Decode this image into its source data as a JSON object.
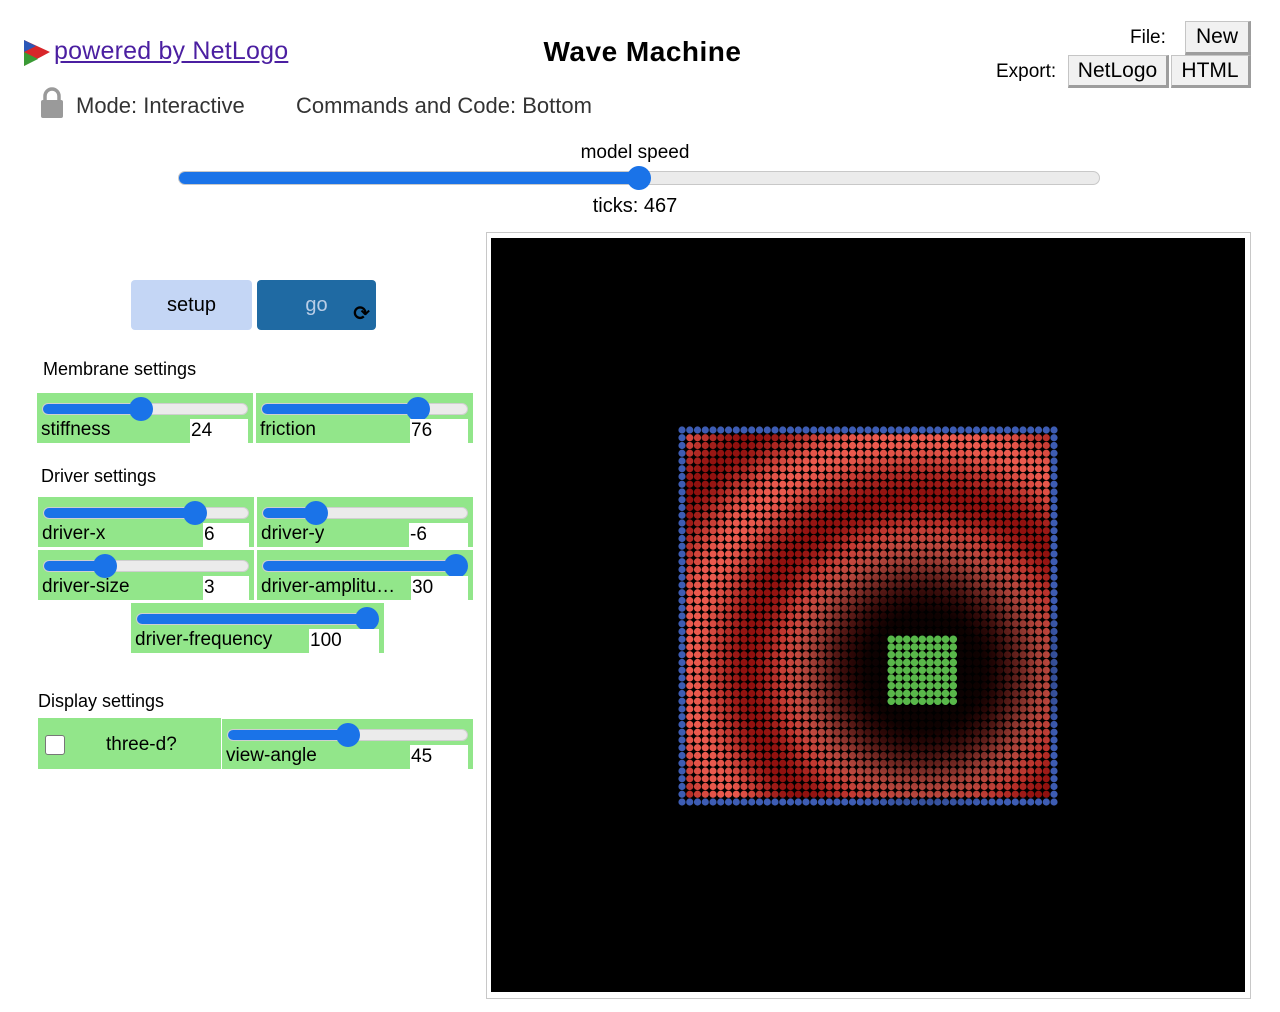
{
  "header": {
    "powered_by": " powered by NetLogo",
    "title": "Wave Machine",
    "file_label": "File:",
    "new_label": "New",
    "export_label": "Export:",
    "netlogo_label": "NetLogo",
    "html_label": "HTML"
  },
  "mode": {
    "mode_text": "Mode: Interactive",
    "commands_text": "Commands and Code: Bottom"
  },
  "speed": {
    "label": "model speed",
    "value_fraction": 0.5,
    "ticks_text": "ticks: 467"
  },
  "buttons": {
    "setup": "setup",
    "go": "go",
    "go_forever_icon": "⟳"
  },
  "sections": {
    "membrane": "Membrane settings",
    "driver": "Driver settings",
    "display": "Display settings"
  },
  "sliders": {
    "stiffness": {
      "label": "stiffness",
      "value": "24",
      "fraction": 0.48
    },
    "friction": {
      "label": "friction",
      "value": "76",
      "fraction": 0.76
    },
    "driver_x": {
      "label": "driver-x",
      "value": "6",
      "fraction": 0.74
    },
    "driver_y": {
      "label": "driver-y",
      "value": "-6",
      "fraction": 0.26
    },
    "driver_size": {
      "label": "driver-size",
      "value": "3",
      "fraction": 0.3
    },
    "driver_amplitude": {
      "label": "driver-amplitu…",
      "value": "30",
      "fraction": 1.0
    },
    "driver_frequency": {
      "label": "driver-frequency",
      "value": "100",
      "fraction": 1.0
    },
    "view_angle": {
      "label": "view-angle",
      "value": "45",
      "fraction": 0.5
    }
  },
  "switches": {
    "three_d": {
      "label": "three-d?",
      "checked": false
    }
  },
  "view": {
    "background": "#000000",
    "edge_color": "#3d5cb3",
    "driver_color": "#59b84a",
    "membrane_color": "#e43b33"
  },
  "colors": {
    "widget_green": "#92e68a",
    "slider_blue": "#1a73e8",
    "setup_bg": "#c4d6f5",
    "go_bg": "#1f6aa3",
    "link_purple": "#4b1fa1"
  },
  "icons": {
    "logo": "netlogo-logo-icon",
    "lock": "lock-icon",
    "forever": "forever-icon"
  }
}
